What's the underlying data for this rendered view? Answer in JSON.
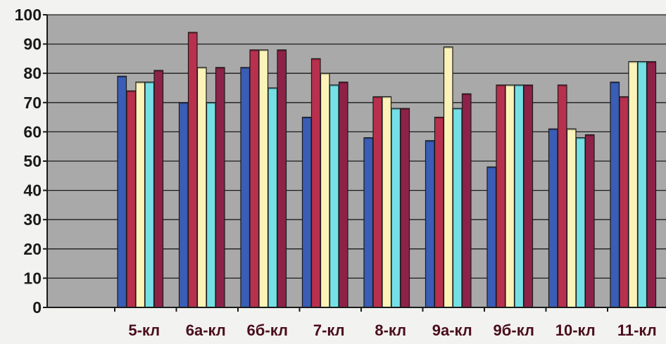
{
  "colors": {
    "plot_background": "#a9a9a9",
    "gridline": "#1c1c1c",
    "axis": "#1a1a1a",
    "tick_label": "#1a1a1a",
    "category_label": "#4a0d1e",
    "series": [
      "#3a5db5",
      "#b8304d",
      "#fbf3b8",
      "#74e0e6",
      "#8d2249"
    ]
  },
  "chart_data": {
    "type": "bar",
    "title": "",
    "xlabel": "",
    "ylabel": "",
    "ylim": [
      0,
      100
    ],
    "yticks": [
      0,
      10,
      20,
      30,
      40,
      50,
      60,
      70,
      80,
      90,
      100
    ],
    "grid": true,
    "legend": "none",
    "categories": [
      "5-кл",
      "6а-кл",
      "6б-кл",
      "7-кл",
      "8-кл",
      "9а-кл",
      "9б-кл",
      "10-кл",
      "11-кл"
    ],
    "series": [
      {
        "values": [
          79,
          70,
          82,
          65,
          58,
          57,
          48,
          61,
          77
        ]
      },
      {
        "values": [
          74,
          94,
          88,
          85,
          72,
          65,
          76,
          76,
          72
        ]
      },
      {
        "values": [
          77,
          82,
          88,
          80,
          72,
          89,
          76,
          61,
          84
        ]
      },
      {
        "values": [
          77,
          70,
          75,
          76,
          68,
          68,
          76,
          58,
          84
        ]
      },
      {
        "values": [
          81,
          82,
          88,
          77,
          68,
          73,
          76,
          59,
          84
        ]
      }
    ]
  }
}
